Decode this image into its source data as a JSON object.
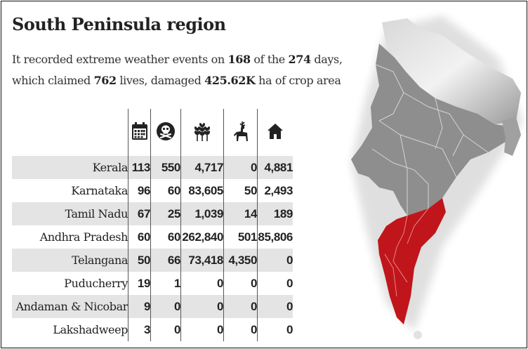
{
  "title": "South Peninsula region",
  "subtitle": {
    "p1": "It recorded extreme weather events on ",
    "days": "168",
    "p2": " of the ",
    "total_days": "274",
    "p3": " days,",
    "p4": "which claimed ",
    "lives": "762",
    "p5": " lives, damaged ",
    "crop": "425.62K",
    "p6": " ha of crop area"
  },
  "icons": [
    "calendar-icon",
    "skull-crossbones-icon",
    "wheat-icon",
    "deer-icon",
    "house-icon"
  ],
  "colors": {
    "band": "#e4e4e4",
    "region_highlight": "#c0161b",
    "map_gray": "#8a8a8a"
  },
  "chart_data": {
    "type": "table",
    "columns": [
      "",
      "",
      "",
      "",
      ""
    ],
    "rows": [
      {
        "state": "Kerala",
        "values": [
          "113",
          "550",
          "4,717",
          "0",
          "4,881"
        ]
      },
      {
        "state": "Karnataka",
        "values": [
          "96",
          "60",
          "83,605",
          "50",
          "2,493"
        ]
      },
      {
        "state": "Tamil Nadu",
        "values": [
          "67",
          "25",
          "1,039",
          "14",
          "189"
        ]
      },
      {
        "state": "Andhra Pradesh",
        "values": [
          "60",
          "60",
          "262,840",
          "501",
          "85,806"
        ]
      },
      {
        "state": "Telangana",
        "values": [
          "50",
          "66",
          "73,418",
          "4,350",
          "0"
        ]
      },
      {
        "state": "Puducherry",
        "values": [
          "19",
          "1",
          "0",
          "0",
          "0"
        ]
      },
      {
        "state": "Andaman & Nicobar",
        "values": [
          "9",
          "0",
          "0",
          "0",
          "0"
        ]
      },
      {
        "state": "Lakshadweep",
        "values": [
          "3",
          "0",
          "0",
          "0",
          "0"
        ]
      }
    ]
  }
}
